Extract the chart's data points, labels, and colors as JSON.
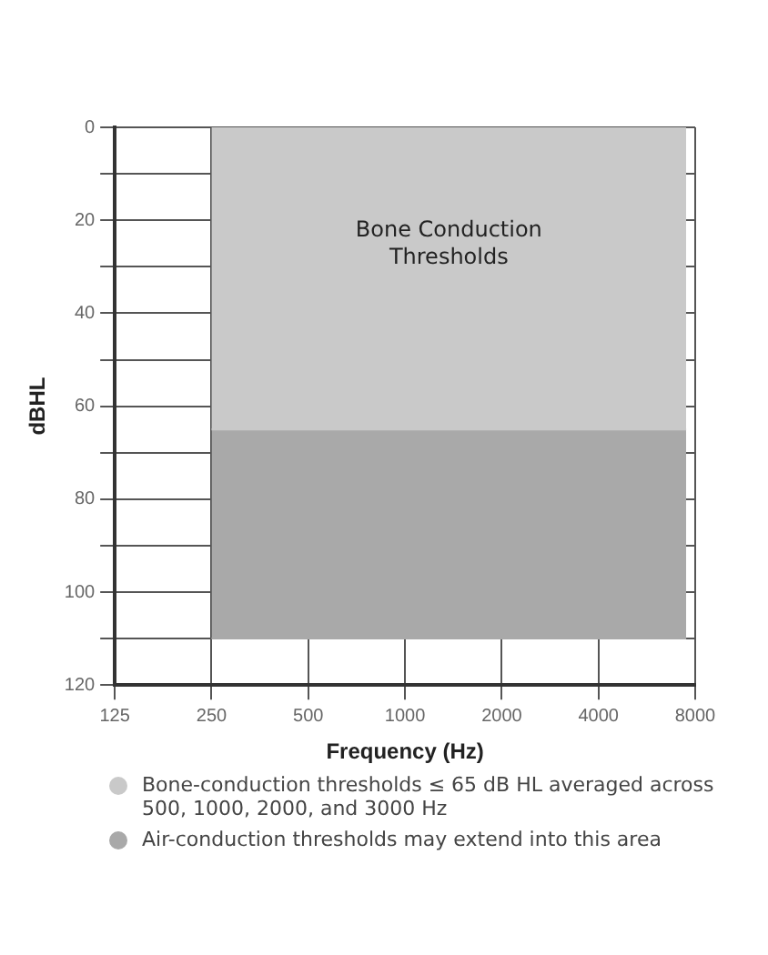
{
  "chart_data": {
    "type": "area",
    "xlabel": "Frequency (Hz)",
    "ylabel": "dBHL",
    "log": "x",
    "x": [
      250,
      7500
    ],
    "series": [
      {
        "name": "Air-conduction thresholds may extend into this area",
        "color": "#a9a9a9",
        "values": [
          110,
          110
        ]
      },
      {
        "name": "Bone-conduction thresholds ≤ 65 dB HL averaged across 500, 1000, 2000, and 3000 Hz",
        "color": "#c9c9c9",
        "values": [
          65,
          65
        ]
      }
    ],
    "xlim": [
      125,
      8000
    ],
    "xticks": [
      125,
      250,
      500,
      1000,
      2000,
      4000,
      8000
    ],
    "ylim": [
      120,
      0
    ],
    "yticks": [
      0,
      {
        "value": 10,
        "label": null
      },
      20,
      {
        "value": 30,
        "label": null
      },
      40,
      {
        "value": 50,
        "label": null
      },
      60,
      {
        "value": 70,
        "label": null
      },
      80,
      {
        "value": 90,
        "label": null
      },
      100,
      {
        "value": 110,
        "label": null
      },
      120
    ],
    "grid": true,
    "legend": "bottom",
    "annotations": [
      "Bone Conduction\nThresholds"
    ]
  }
}
